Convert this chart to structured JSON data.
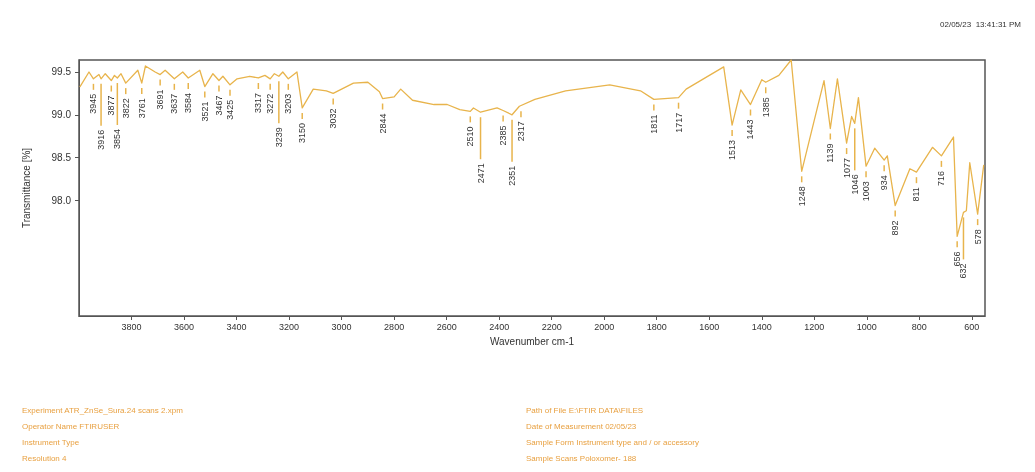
{
  "chart_data": {
    "type": "line",
    "xlabel": "Wavenumber cm-1",
    "ylabel": "Transmittance [%]",
    "grid": false,
    "marker": "none",
    "line_style": "solid",
    "xlim": [
      4000,
      550
    ],
    "xticks": [
      3800,
      3600,
      3400,
      3200,
      3000,
      2800,
      2600,
      2400,
      2200,
      2000,
      1800,
      1600,
      1400,
      1200,
      1000,
      800,
      600
    ],
    "ylim": [
      96.65,
      99.64
    ],
    "yticks": [
      {
        "value": 98,
        "label": "98.0"
      },
      {
        "value": 98.5,
        "label": "98.5"
      },
      {
        "value": 99,
        "label": "99.0"
      },
      {
        "value": 99.5,
        "label": "99.5"
      }
    ],
    "series": [
      {
        "color": "#e8b44c",
        "x": [
          3996,
          3962,
          3945,
          3924,
          3916,
          3900,
          3877,
          3865,
          3854,
          3840,
          3822,
          3776,
          3761,
          3747,
          3710,
          3691,
          3672,
          3637,
          3605,
          3584,
          3540,
          3521,
          3490,
          3467,
          3452,
          3425,
          3398,
          3350,
          3317,
          3292,
          3272,
          3256,
          3239,
          3224,
          3203,
          3170,
          3150,
          3108,
          3058,
          3032,
          2955,
          2900,
          2856,
          2844,
          2800,
          2775,
          2730,
          2648,
          2598,
          2550,
          2510,
          2498,
          2471,
          2408,
          2385,
          2351,
          2323,
          2264,
          2147,
          1979,
          1862,
          1811,
          1717,
          1688,
          1545,
          1513,
          1480,
          1443,
          1400,
          1385,
          1335,
          1288,
          1248,
          1163,
          1139,
          1112,
          1077,
          1058,
          1046,
          1032,
          1003,
          970,
          934,
          922,
          892,
          836,
          811,
          750,
          716,
          670,
          656,
          632,
          621,
          608,
          578,
          555
        ],
        "values": [
          99.33,
          99.5,
          99.42,
          99.47,
          99.42,
          99.48,
          99.4,
          99.46,
          99.43,
          99.48,
          99.37,
          99.52,
          99.37,
          99.57,
          99.5,
          99.47,
          99.52,
          99.42,
          99.5,
          99.43,
          99.52,
          99.33,
          99.48,
          99.4,
          99.45,
          99.35,
          99.42,
          99.45,
          99.43,
          99.46,
          99.42,
          99.48,
          99.45,
          99.5,
          99.42,
          99.5,
          99.08,
          99.3,
          99.28,
          99.25,
          99.37,
          99.38,
          99.27,
          99.19,
          99.21,
          99.3,
          99.17,
          99.12,
          99.12,
          99.06,
          99.04,
          99.08,
          99.03,
          99.08,
          99.05,
          99.0,
          99.1,
          99.18,
          99.28,
          99.35,
          99.28,
          99.18,
          99.2,
          99.3,
          99.56,
          98.88,
          99.29,
          99.12,
          99.41,
          99.38,
          99.46,
          99.64,
          98.34,
          99.4,
          98.84,
          99.42,
          98.67,
          98.98,
          98.9,
          99.2,
          98.4,
          98.61,
          98.47,
          98.52,
          97.94,
          98.37,
          98.33,
          98.62,
          98.52,
          98.74,
          97.58,
          97.86,
          97.88,
          98.44,
          97.84,
          98.41
        ]
      }
    ],
    "annotations": [
      "02/05/23  13:41:31 PM",
      "Experiment ATR_ZnSe_Sura.24 scans 2.xpm",
      "Operator Name FTIRUSER",
      "Instrument Type",
      "Resolution 4",
      "Path of File E:\\FTIR DATA\\FILES",
      "Date of Measurement 02/05/23",
      "Sample Form Instrument type and / or accessory",
      "Sample Scans Poloxomer- 188",
      {
        "text": "3945",
        "x": 3945,
        "y": 99.42
      },
      {
        "text": "3916",
        "x": 3916,
        "y": 99.42
      },
      {
        "text": "3877",
        "x": 3877,
        "y": 99.4
      },
      {
        "text": "3854",
        "x": 3854,
        "y": 99.43
      },
      {
        "text": "3822",
        "x": 3822,
        "y": 99.37
      },
      {
        "text": "3761",
        "x": 3761,
        "y": 99.37
      },
      {
        "text": "3691",
        "x": 3691,
        "y": 99.47
      },
      {
        "text": "3637",
        "x": 3637,
        "y": 99.42
      },
      {
        "text": "3584",
        "x": 3584,
        "y": 99.43
      },
      {
        "text": "3521",
        "x": 3521,
        "y": 99.33
      },
      {
        "text": "3467",
        "x": 3467,
        "y": 99.4
      },
      {
        "text": "3425",
        "x": 3425,
        "y": 99.35
      },
      {
        "text": "3317",
        "x": 3317,
        "y": 99.43
      },
      {
        "text": "3272",
        "x": 3272,
        "y": 99.42
      },
      {
        "text": "3239",
        "x": 3239,
        "y": 99.45
      },
      {
        "text": "3203",
        "x": 3203,
        "y": 99.42
      },
      {
        "text": "3150",
        "x": 3150,
        "y": 99.08
      },
      {
        "text": "3032",
        "x": 3032,
        "y": 99.25
      },
      {
        "text": "2844",
        "x": 2844,
        "y": 99.19
      },
      {
        "text": "2510",
        "x": 2510,
        "y": 99.04
      },
      {
        "text": "2471",
        "x": 2471,
        "y": 99.03
      },
      {
        "text": "2385",
        "x": 2385,
        "y": 99.05
      },
      {
        "text": "2351",
        "x": 2351,
        "y": 99.0
      },
      {
        "text": "2317",
        "x": 2317,
        "y": 99.1
      },
      {
        "text": "1811",
        "x": 1811,
        "y": 99.18
      },
      {
        "text": "1717",
        "x": 1717,
        "y": 99.2
      },
      {
        "text": "1513",
        "x": 1513,
        "y": 98.88
      },
      {
        "text": "1443",
        "x": 1443,
        "y": 99.12
      },
      {
        "text": "1385",
        "x": 1385,
        "y": 99.38
      },
      {
        "text": "1248",
        "x": 1248,
        "y": 98.34
      },
      {
        "text": "1139",
        "x": 1139,
        "y": 98.84
      },
      {
        "text": "1077",
        "x": 1077,
        "y": 98.67
      },
      {
        "text": "1046",
        "x": 1046,
        "y": 98.9
      },
      {
        "text": "1003",
        "x": 1003,
        "y": 98.4
      },
      {
        "text": "934",
        "x": 934,
        "y": 98.47
      },
      {
        "text": "892",
        "x": 892,
        "y": 97.94
      },
      {
        "text": "811",
        "x": 811,
        "y": 98.33
      },
      {
        "text": "716",
        "x": 716,
        "y": 98.52
      },
      {
        "text": "656",
        "x": 656,
        "y": 97.58
      },
      {
        "text": "632",
        "x": 632,
        "y": 97.86
      },
      {
        "text": "578",
        "x": 578,
        "y": 97.84
      }
    ]
  }
}
